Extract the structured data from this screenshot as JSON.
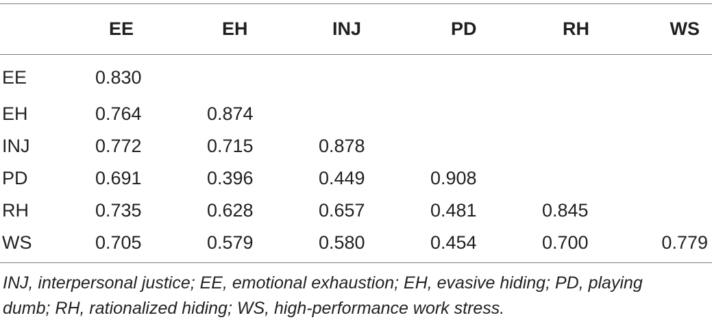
{
  "table": {
    "headers": [
      "",
      "EE",
      "EH",
      "INJ",
      "PD",
      "RH",
      "WS"
    ],
    "rows": [
      {
        "label": "EE",
        "values": [
          "0.830",
          "",
          "",
          "",
          "",
          ""
        ]
      },
      {
        "label": "EH",
        "values": [
          "0.764",
          "0.874",
          "",
          "",
          "",
          ""
        ]
      },
      {
        "label": "INJ",
        "values": [
          "0.772",
          "0.715",
          "0.878",
          "",
          "",
          ""
        ]
      },
      {
        "label": "PD",
        "values": [
          "0.691",
          "0.396",
          "0.449",
          "0.908",
          "",
          ""
        ]
      },
      {
        "label": "RH",
        "values": [
          "0.735",
          "0.628",
          "0.657",
          "0.481",
          "0.845",
          ""
        ]
      },
      {
        "label": "WS",
        "values": [
          "0.705",
          "0.579",
          "0.580",
          "0.454",
          "0.700",
          "0.779"
        ]
      }
    ]
  },
  "footnote": {
    "line1": "INJ, interpersonal justice; EE, emotional exhaustion; EH, evasive hiding; PD, playing",
    "line2": "dumb; RH, rationalized hiding; WS, high-performance work stress."
  }
}
